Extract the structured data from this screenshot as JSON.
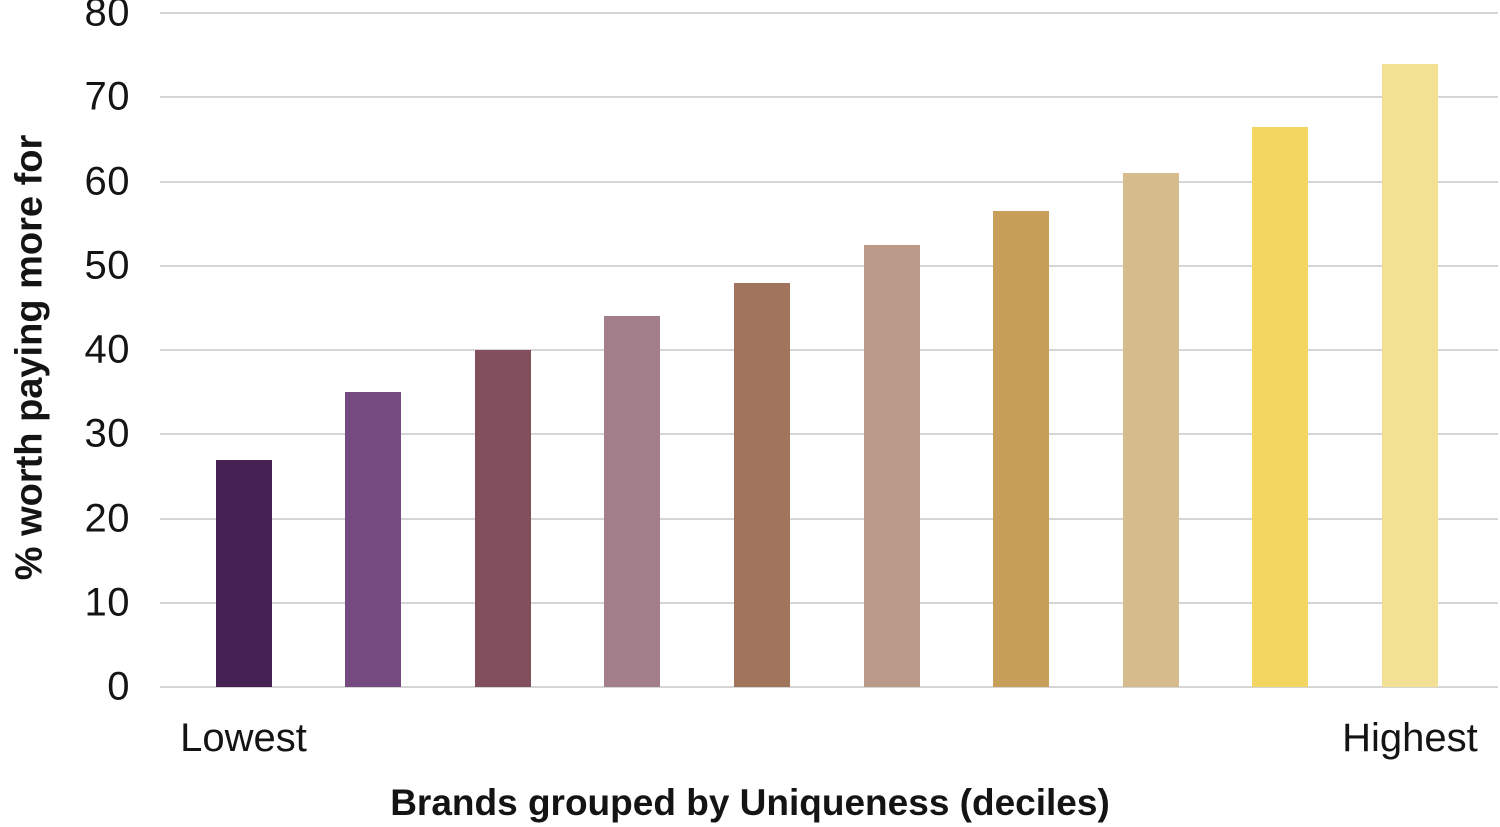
{
  "chart_data": {
    "type": "bar",
    "title": "",
    "xlabel": "Brands grouped by Uniqueness (deciles)",
    "ylabel": "% worth paying more for",
    "ylim": [
      0,
      80
    ],
    "yticks": [
      0,
      10,
      20,
      30,
      40,
      50,
      60,
      70,
      80
    ],
    "grid": true,
    "gridline_color": "#d5d5d5",
    "text_color": "#141414",
    "categories": [
      "Lowest",
      "",
      "",
      "",
      "",
      "",
      "",
      "",
      "",
      "Highest"
    ],
    "first_category_label": "Lowest",
    "last_category_label": "Highest",
    "values": [
      27,
      35,
      40,
      44,
      48,
      52.5,
      56.5,
      61,
      66.5,
      74
    ],
    "bar_colors": [
      "#452253",
      "#754A80",
      "#82505D",
      "#A27F8A",
      "#A1755B",
      "#BB9A89",
      "#C79F59",
      "#D6BB8C",
      "#F3D662",
      "#F3E193"
    ],
    "legend": null
  }
}
